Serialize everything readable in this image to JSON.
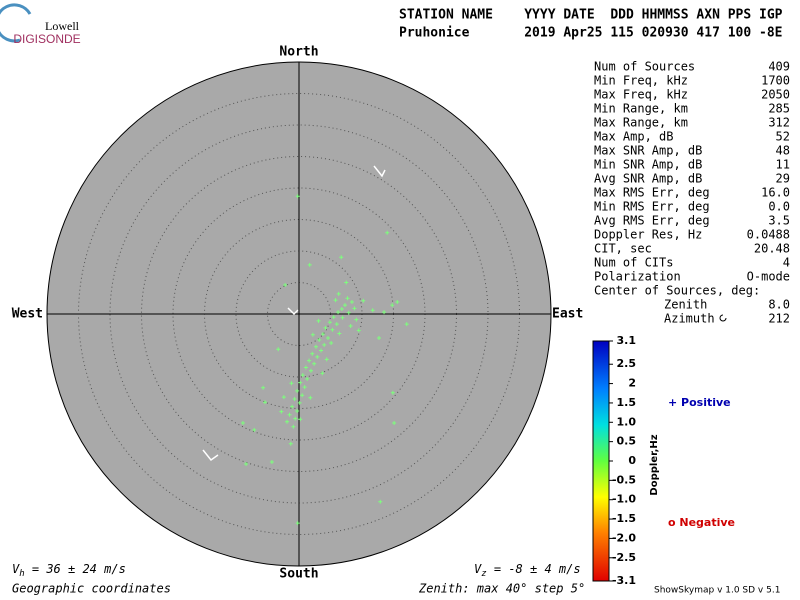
{
  "logo": {
    "top": "Lowell",
    "bottom": "DIGISONDE"
  },
  "header": {
    "line1": "STATION NAME    YYYY DATE  DDD HHMMSS AXN PPS IGP",
    "line2": "Pruhonice       2019 Apr25 115 020930 417 100 -8E"
  },
  "stats": [
    [
      "Num of Sources",
      "409"
    ],
    [
      "Min Freq, kHz",
      "1700"
    ],
    [
      "Max Freq, kHz",
      "2050"
    ],
    [
      "Min Range, km",
      "285"
    ],
    [
      "Max Range, km",
      "312"
    ],
    [
      "Max Amp, dB",
      "52"
    ],
    [
      "Max SNR Amp, dB",
      "48"
    ],
    [
      "Min SNR Amp, dB",
      "11"
    ],
    [
      "Avg SNR Amp, dB",
      "29"
    ],
    [
      "Max RMS Err, deg",
      "16.0"
    ],
    [
      "Min RMS Err, deg",
      "0.0"
    ],
    [
      "Avg RMS Err, deg",
      "3.5"
    ],
    [
      "Doppler Res, Hz",
      "0.0488"
    ],
    [
      "CIT, sec",
      "20.48"
    ],
    [
      "Num of CITs",
      "4"
    ],
    [
      "Polarization",
      "O-mode"
    ]
  ],
  "center": {
    "title": "Center of Sources, deg:",
    "zenith_label": "Zenith",
    "zenith": "8.0",
    "azimuth_label": "Azimuth",
    "azimuth": "212"
  },
  "footer": {
    "vh_v": "V",
    "vh_sub": "h",
    "vh": " = 36 ± 24 m/s",
    "vz_v": "V",
    "vz_sub": "z",
    "vz": " = -8 ± 4 m/s",
    "coords": "Geographic coordinates",
    "zenith": "Zenith: max 40°  step 5°",
    "version": "ShowSkymap v 1.0  SD v 5.1"
  },
  "legend": {
    "positive": "+ Positive",
    "negative": "o Negative"
  },
  "chart_data": {
    "type": "skymap",
    "directions": {
      "north": "North",
      "south": "South",
      "east": "East",
      "west": "West"
    },
    "rlim": [
      0,
      40
    ],
    "rticks": [
      5,
      10,
      15,
      20,
      25,
      30,
      35,
      40
    ],
    "color": "#7dff7d",
    "points": {
      "x": [
        -0.2,
        14,
        6.7,
        1.7,
        -2.2,
        15.6,
        17.1,
        12.7,
        -5.7,
        -8.9,
        -8.4,
        -4.3,
        -0.2,
        12.9,
        15.1,
        14.9,
        7.5,
        11.7,
        -3.3,
        -5.4,
        -7.1,
        -1.3,
        0.2,
        13.5,
        14.8,
        7.3,
        6.8,
        6.2,
        7.9,
        5.5,
        6.9,
        4.9,
        6.0,
        4.2,
        5.3,
        3.8,
        4.6,
        3.2,
        4.0,
        2.7,
        3.5,
        2.1,
        2.9,
        1.6,
        2.4,
        1.1,
        1.9,
        0.6,
        1.3,
        0.2,
        0.9,
        -0.3,
        0.5,
        -0.7,
        0.1,
        -1.1,
        -0.3,
        -1.5,
        -0.6,
        -1.9,
        -0.9,
        8.4,
        7.7,
        5.8,
        9.1,
        8.2,
        3.1,
        2.2,
        6.4,
        5.1,
        -1.2,
        -2.4,
        -2.8,
        1.8,
        3.7,
        4.4,
        8.8,
        6.3,
        10.2,
        9.5
      ],
      "y": [
        18.7,
        12.9,
        9,
        7.8,
        4.6,
        1.9,
        -1.6,
        -3.8,
        -11.7,
        -17.3,
        -23.8,
        -23.5,
        -33.2,
        -29.8,
        -17.3,
        -12.5,
        5,
        0.6,
        -5.6,
        -14,
        -18.4,
        -20.6,
        -16.7,
        0.3,
        1.4,
        1.4,
        0.8,
        0.3,
        0.2,
        -0.5,
        -0.6,
        -1.3,
        -1.6,
        -2.2,
        -2.5,
        -3.2,
        -3.8,
        -4.1,
        -4.9,
        -5.2,
        -5.8,
        -6.3,
        -6.8,
        -7.4,
        -7.9,
        -8.5,
        -9.0,
        -9.7,
        -10.3,
        -10.9,
        -11.6,
        -12.2,
        -12.9,
        -13.5,
        -14.1,
        -14.7,
        -15.4,
        -16.0,
        -16.6,
        -17.1,
        -17.9,
        1.9,
        2.5,
        2.2,
        -0.9,
        -1.9,
        -1.1,
        -3.3,
        -3.1,
        -4.6,
        -11.0,
        -13.2,
        -15.5,
        -13.3,
        -9.4,
        -7.2,
        0.9,
        3.2,
        2.1,
        -2.6
      ]
    },
    "colorbar": {
      "label": "Doppler,Hz",
      "lim": [
        -3.1,
        3.1
      ],
      "ticks": [
        3.1,
        2.5,
        2,
        1.5,
        {
          "value": 1,
          "label": "1.0"
        },
        0.5,
        0,
        -0.5,
        {
          "value": -1,
          "label": "-1.0"
        },
        -1.5,
        {
          "value": -2,
          "label": "-2.0"
        },
        -2.5,
        -3.1
      ]
    }
  }
}
